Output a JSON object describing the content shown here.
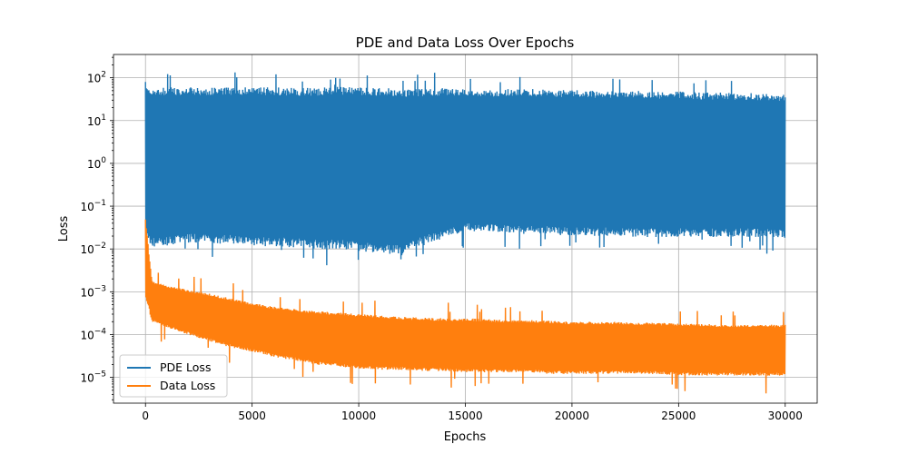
{
  "chart_data": {
    "type": "line",
    "title": "PDE and Data Loss Over Epochs",
    "xlabel": "Epochs",
    "ylabel": "Loss",
    "yscale": "log",
    "xlim": [
      -1500,
      31500
    ],
    "ylim": [
      2.5e-06,
      350
    ],
    "x_ticks": [
      0,
      5000,
      10000,
      15000,
      20000,
      25000,
      30000
    ],
    "x_tick_labels": [
      "0",
      "5000",
      "10000",
      "15000",
      "20000",
      "25000",
      "30000"
    ],
    "y_ticks": [
      1e-05,
      0.0001,
      0.001,
      0.01,
      0.1,
      1,
      10,
      100
    ],
    "y_tick_labels": [
      {
        "base": "10",
        "exp": "−5"
      },
      {
        "base": "10",
        "exp": "−4"
      },
      {
        "base": "10",
        "exp": "−3"
      },
      {
        "base": "10",
        "exp": "−2"
      },
      {
        "base": "10",
        "exp": "−1"
      },
      {
        "base": "10",
        "exp": "0"
      },
      {
        "base": "10",
        "exp": "1"
      },
      {
        "base": "10",
        "exp": "2"
      }
    ],
    "grid": true,
    "legend_position": "lower-left",
    "series": [
      {
        "name": "PDE Loss",
        "color": "#1f77b4",
        "x": [
          0,
          300,
          1000,
          2000,
          3000,
          4000,
          5000,
          6000,
          7000,
          8000,
          9000,
          10000,
          11000,
          12000,
          13000,
          14000,
          15000,
          16000,
          17000,
          18000,
          19000,
          20000,
          21000,
          22000,
          23000,
          24000,
          25000,
          26000,
          27000,
          28000,
          29000,
          30000
        ],
        "upper": [
          80,
          60,
          60,
          60,
          58,
          60,
          60,
          60,
          58,
          58,
          62,
          60,
          58,
          55,
          55,
          58,
          55,
          52,
          55,
          55,
          52,
          52,
          50,
          50,
          50,
          48,
          48,
          45,
          45,
          45,
          43,
          42
        ],
        "lower": [
          0.02,
          0.011,
          0.012,
          0.014,
          0.013,
          0.013,
          0.012,
          0.011,
          0.011,
          0.01,
          0.01,
          0.009,
          0.008,
          0.007,
          0.012,
          0.018,
          0.025,
          0.025,
          0.024,
          0.022,
          0.022,
          0.02,
          0.02,
          0.02,
          0.019,
          0.019,
          0.019,
          0.019,
          0.019,
          0.019,
          0.019,
          0.018
        ]
      },
      {
        "name": "Data Loss",
        "color": "#ff7f0e",
        "x": [
          0,
          300,
          1000,
          2000,
          3000,
          4000,
          5000,
          6000,
          7000,
          8000,
          9000,
          10000,
          11000,
          12000,
          13000,
          14000,
          15000,
          16000,
          17000,
          18000,
          19000,
          20000,
          21000,
          22000,
          23000,
          24000,
          25000,
          26000,
          27000,
          28000,
          29000,
          30000
        ],
        "upper": [
          0.05,
          0.0018,
          0.0014,
          0.0011,
          0.0009,
          0.0007,
          0.00055,
          0.00045,
          0.0004,
          0.00035,
          0.00033,
          0.0003,
          0.00028,
          0.00026,
          0.00025,
          0.00024,
          0.00024,
          0.00023,
          0.00022,
          0.00022,
          0.00021,
          0.0002,
          0.0002,
          0.0002,
          0.00019,
          0.00019,
          0.00018,
          0.00018,
          0.00017,
          0.00017,
          0.00017,
          0.00017
        ],
        "lower": [
          0.0008,
          0.0002,
          0.00015,
          0.0001,
          7e-05,
          5e-05,
          4e-05,
          3e-05,
          2.5e-05,
          2e-05,
          1.8e-05,
          1.6e-05,
          1.5e-05,
          1.5e-05,
          1.4e-05,
          1.4e-05,
          1.3e-05,
          1.3e-05,
          1.3e-05,
          1.3e-05,
          1.2e-05,
          1.2e-05,
          1.2e-05,
          1.2e-05,
          1.2e-05,
          1.2e-05,
          1.1e-05,
          1.1e-05,
          1.1e-05,
          1.1e-05,
          1.1e-05,
          1.1e-05
        ]
      }
    ]
  }
}
